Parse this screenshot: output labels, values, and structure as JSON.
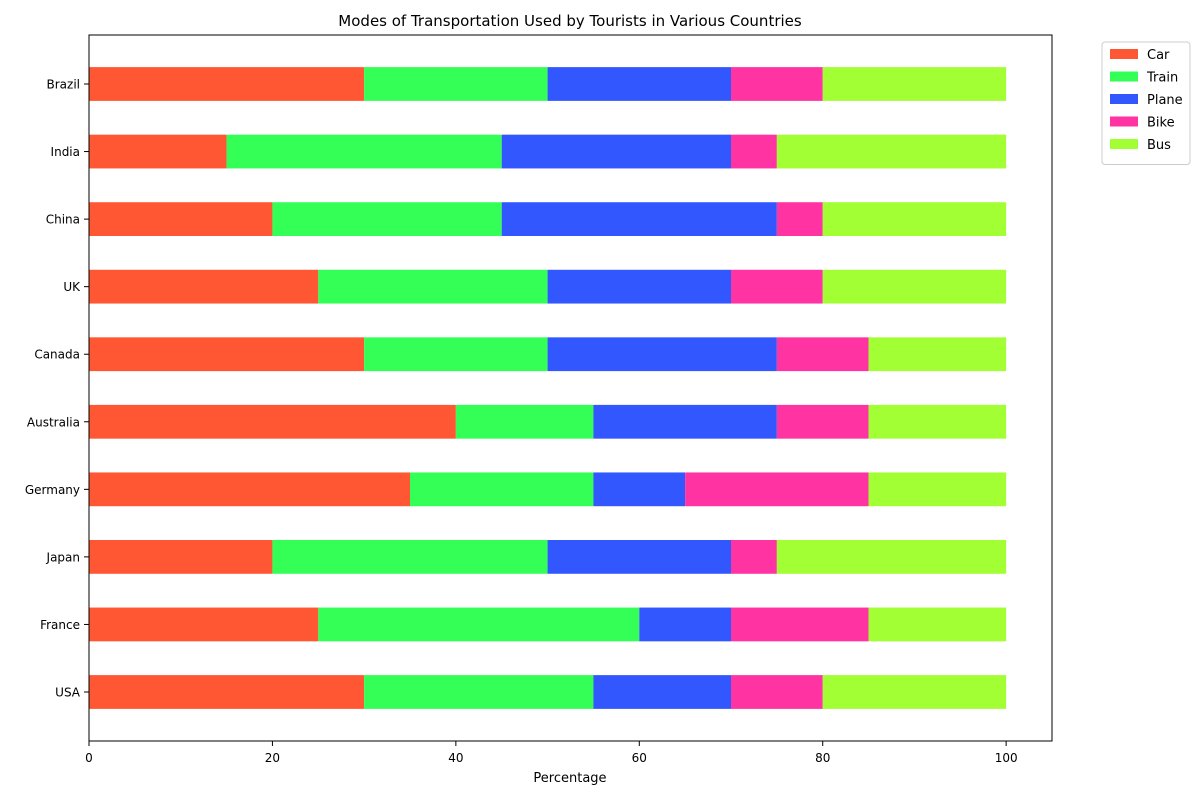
{
  "chart_data": {
    "type": "bar",
    "orientation": "horizontal",
    "stacked": true,
    "title": "Modes of Transportation Used by Tourists in Various Countries",
    "xlabel": "Percentage",
    "ylabel": "",
    "xlim": [
      0,
      105
    ],
    "xticks": [
      0,
      20,
      40,
      60,
      80,
      100
    ],
    "grid": false,
    "legend_position": "outside-top-right",
    "categories": [
      "USA",
      "France",
      "Japan",
      "Germany",
      "Australia",
      "Canada",
      "UK",
      "China",
      "India",
      "Brazil"
    ],
    "series": [
      {
        "name": "Car",
        "color": "#ff5733",
        "values": [
          30,
          25,
          20,
          35,
          40,
          30,
          25,
          20,
          15,
          30
        ]
      },
      {
        "name": "Train",
        "color": "#33ff57",
        "values": [
          25,
          35,
          30,
          20,
          15,
          20,
          25,
          25,
          30,
          20
        ]
      },
      {
        "name": "Plane",
        "color": "#3357ff",
        "values": [
          15,
          10,
          20,
          10,
          20,
          25,
          20,
          30,
          25,
          20
        ]
      },
      {
        "name": "Bike",
        "color": "#ff33a1",
        "values": [
          10,
          15,
          5,
          20,
          10,
          10,
          10,
          5,
          5,
          10
        ]
      },
      {
        "name": "Bus",
        "color": "#a1ff33",
        "values": [
          20,
          15,
          25,
          15,
          15,
          15,
          20,
          20,
          25,
          20
        ]
      }
    ]
  }
}
